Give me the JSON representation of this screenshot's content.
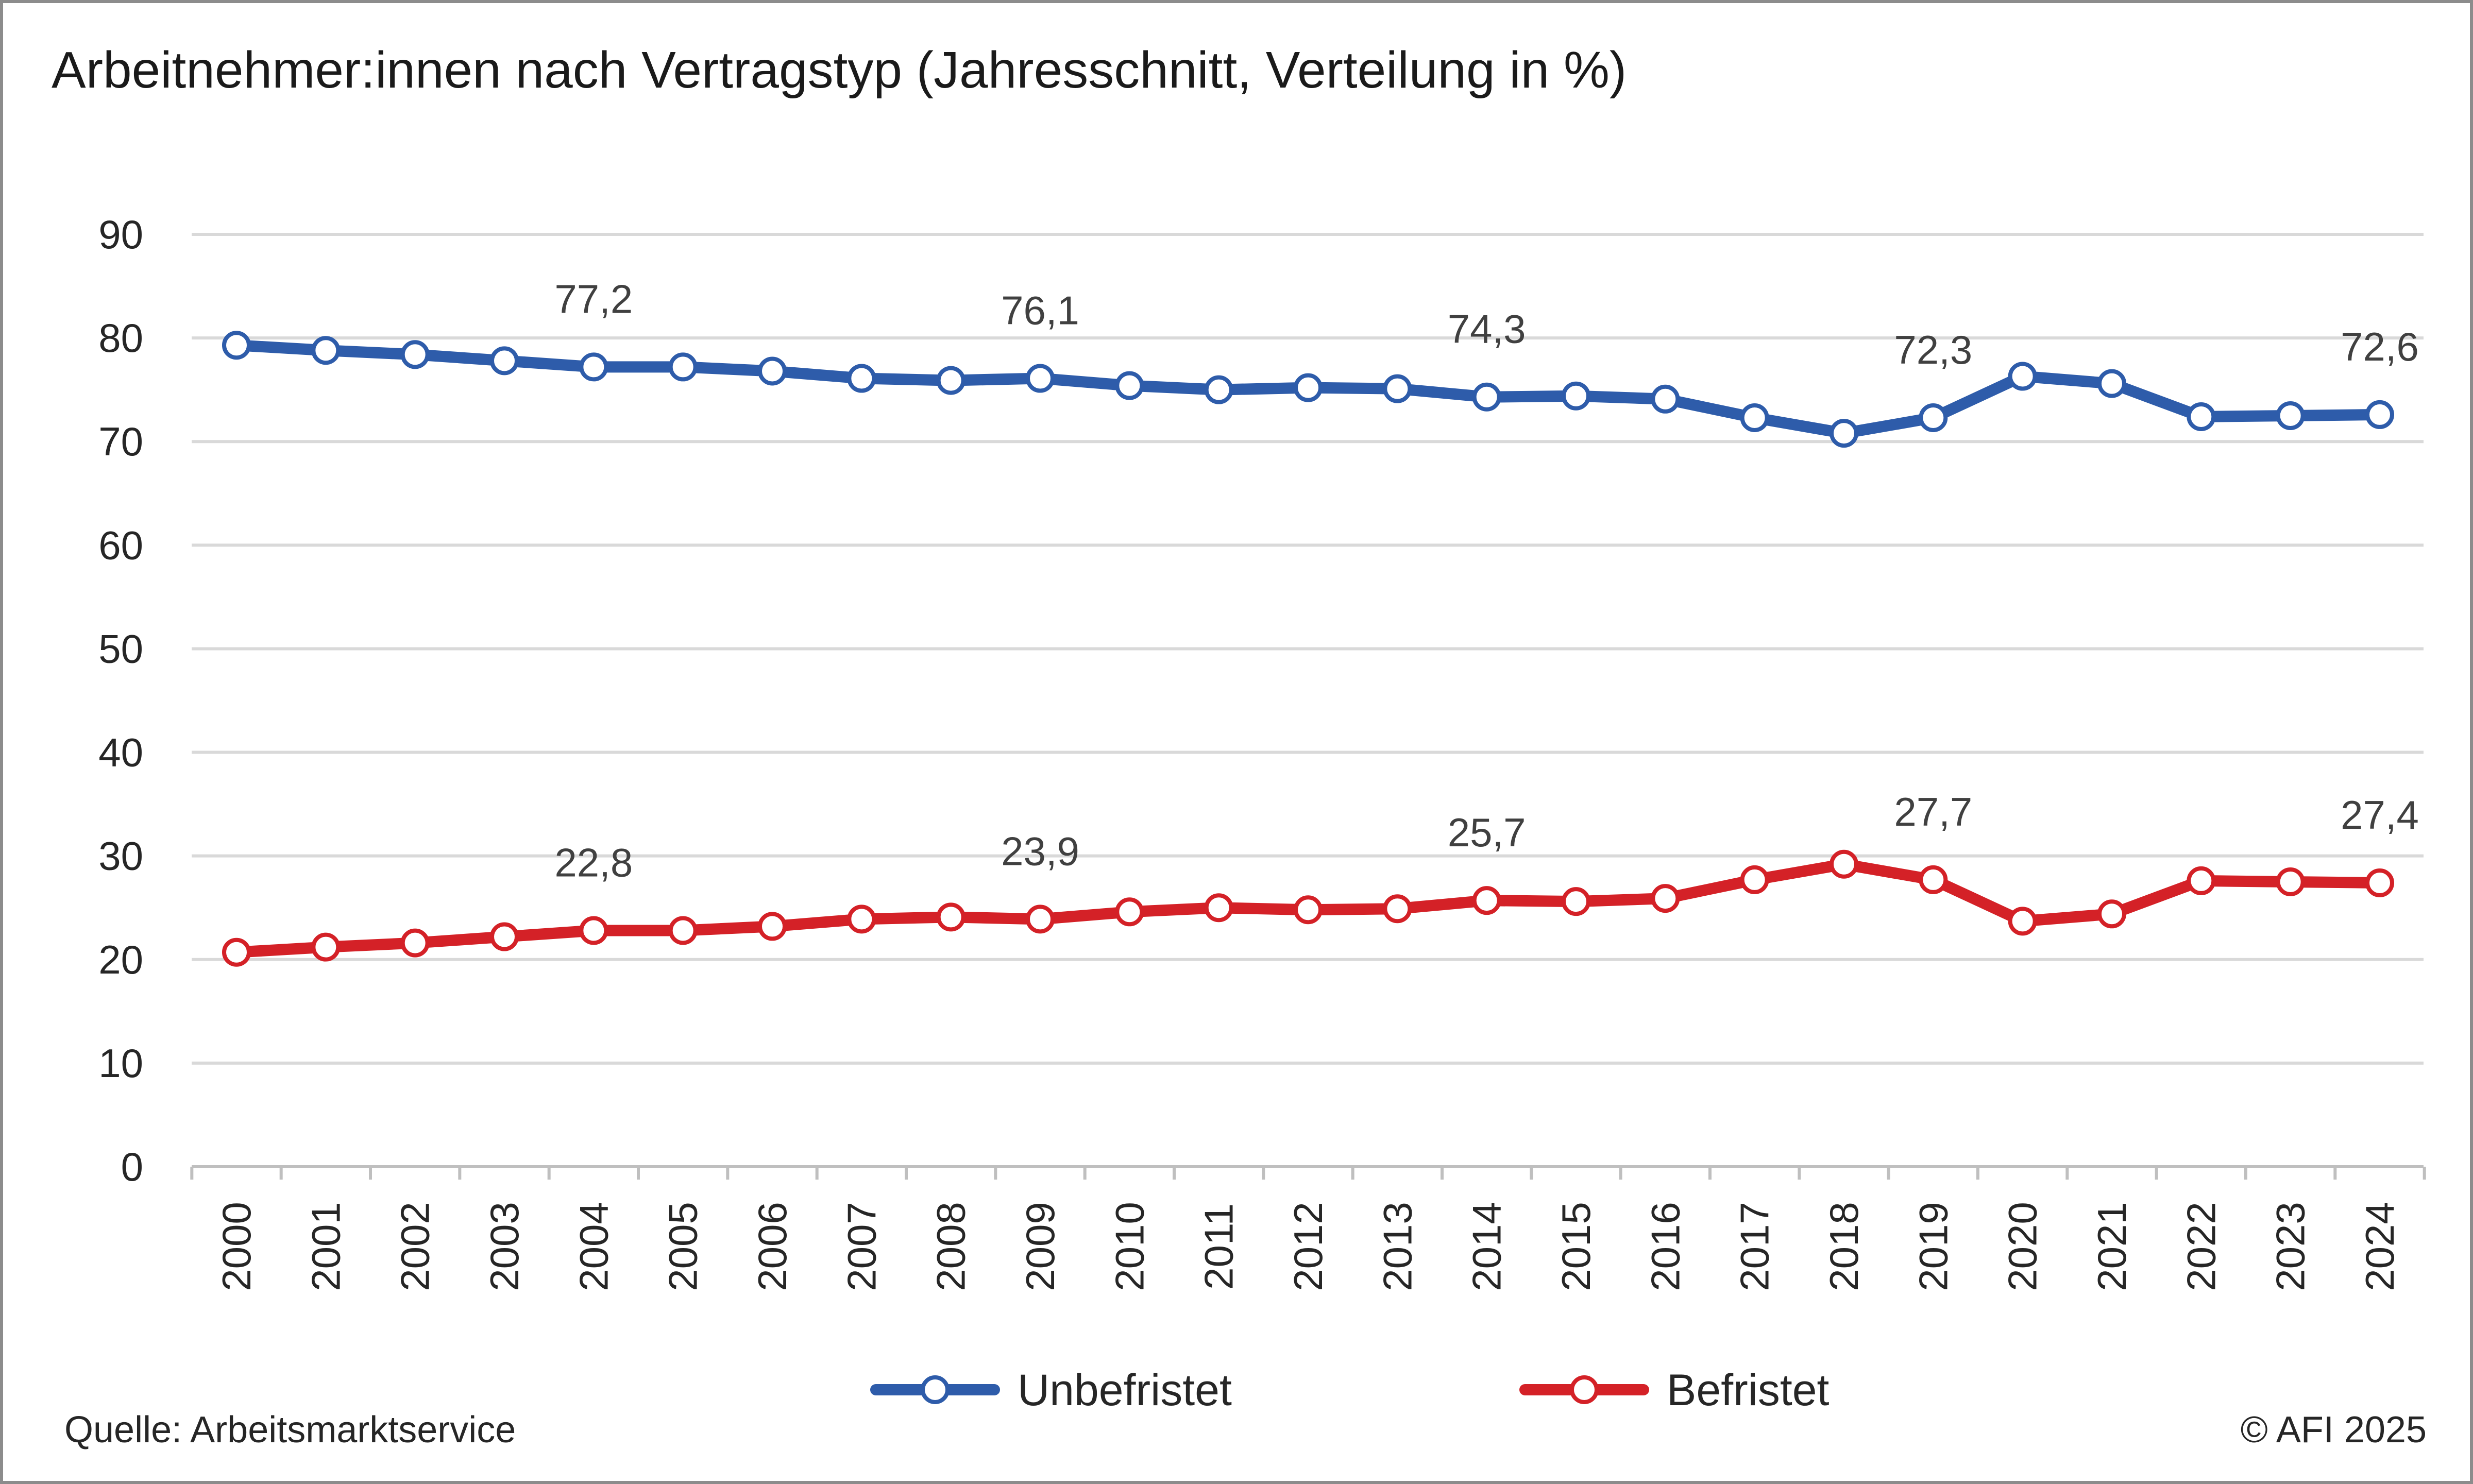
{
  "title": "Arbeitnehmer:innen nach Vertragstyp (Jahresschnitt, Verteilung in %)",
  "source": "Quelle: Arbeitsmarktservice",
  "copyright": "© AFI 2025",
  "colors": {
    "unbefristet": "#2e5caa",
    "befristet": "#d42127",
    "grid": "#d9d9d9",
    "frame": "#8c8c8c"
  },
  "chart_data": {
    "type": "line",
    "title": "Arbeitnehmer:innen nach Vertragstyp (Jahresschnitt, Verteilung in %)",
    "xlabel": "",
    "ylabel": "",
    "ylim": [
      0,
      90
    ],
    "yticks": [
      "0",
      "10",
      "20",
      "30",
      "40",
      "50",
      "60",
      "70",
      "80",
      "90"
    ],
    "grid": true,
    "legend_position": "bottom",
    "x": [
      "2000",
      "2001",
      "2002",
      "2003",
      "2004",
      "2005",
      "2006",
      "2007",
      "2008",
      "2009",
      "2010",
      "2011",
      "2012",
      "2013",
      "2014",
      "2015",
      "2016",
      "2017",
      "2018",
      "2019",
      "2020",
      "2021",
      "2022",
      "2023",
      "2024"
    ],
    "series": [
      {
        "name": "Unbefristet",
        "color": "#2e5caa",
        "values": [
          79.3,
          78.8,
          78.4,
          77.8,
          77.2,
          77.2,
          76.8,
          76.1,
          75.9,
          76.1,
          75.4,
          75.0,
          75.2,
          75.1,
          74.3,
          74.4,
          74.1,
          72.3,
          70.8,
          72.3,
          76.3,
          75.6,
          72.4,
          72.5,
          72.6
        ],
        "data_labels": [
          {
            "x": "2004",
            "text": "77,2"
          },
          {
            "x": "2009",
            "text": "76,1"
          },
          {
            "x": "2014",
            "text": "74,3"
          },
          {
            "x": "2019",
            "text": "72,3"
          },
          {
            "x": "2024",
            "text": "72,6"
          }
        ]
      },
      {
        "name": "Befristet",
        "color": "#d42127",
        "values": [
          20.7,
          21.2,
          21.6,
          22.2,
          22.8,
          22.8,
          23.2,
          23.9,
          24.1,
          23.9,
          24.6,
          25.0,
          24.8,
          24.9,
          25.7,
          25.6,
          25.9,
          27.7,
          29.2,
          27.7,
          23.7,
          24.4,
          27.6,
          27.5,
          27.4
        ],
        "data_labels": [
          {
            "x": "2004",
            "text": "22,8"
          },
          {
            "x": "2009",
            "text": "23,9"
          },
          {
            "x": "2014",
            "text": "25,7"
          },
          {
            "x": "2019",
            "text": "27,7"
          },
          {
            "x": "2024",
            "text": "27,4"
          }
        ]
      }
    ]
  }
}
